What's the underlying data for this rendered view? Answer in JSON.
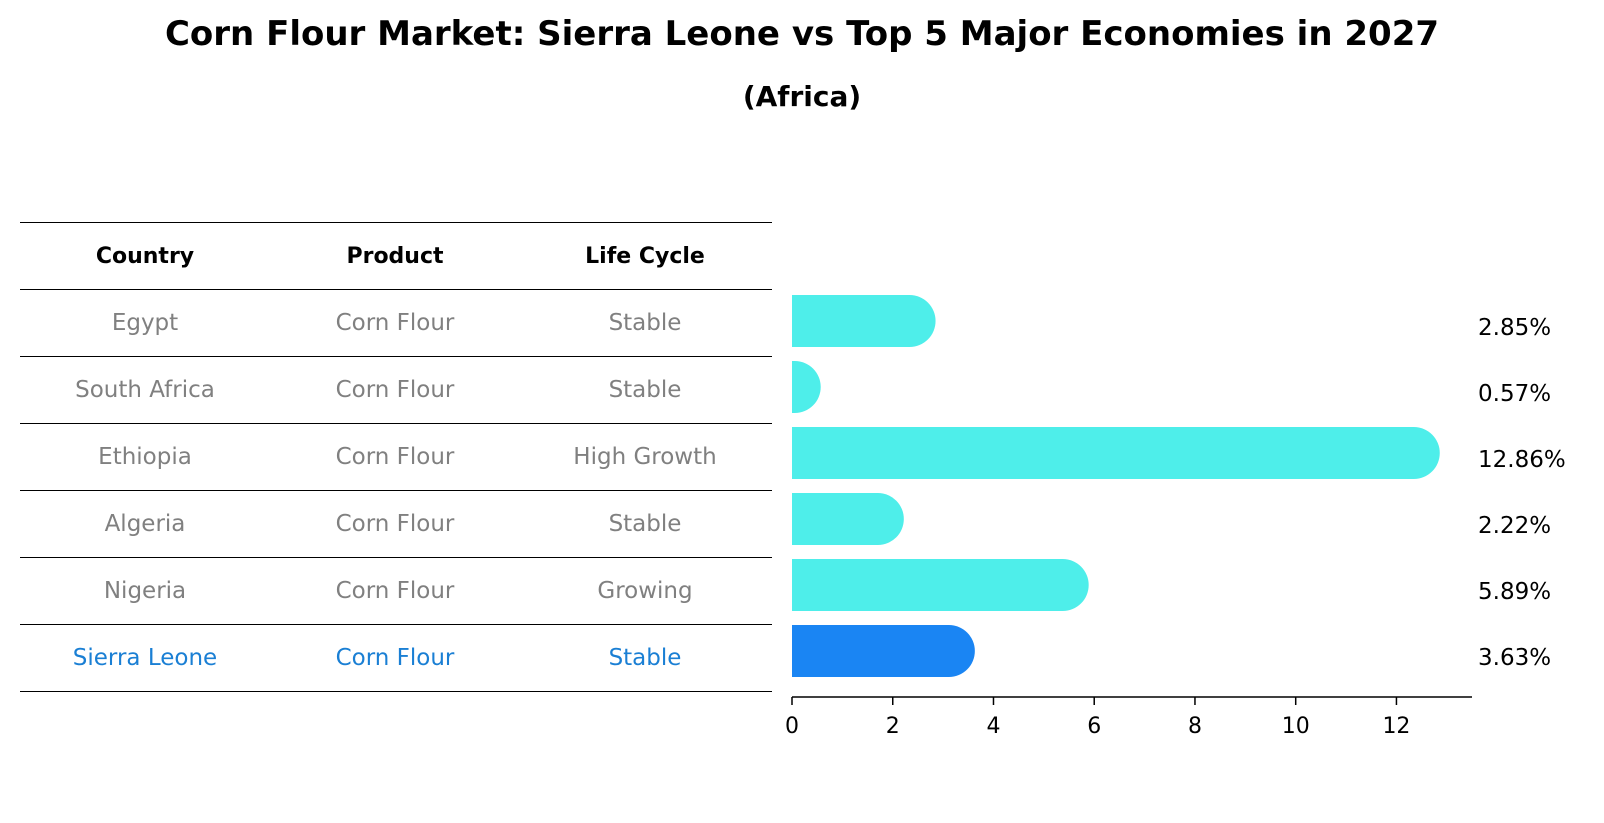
{
  "header": {
    "title": "Corn Flour Market: Sierra Leone vs Top 5 Major Economies in 2027",
    "subtitle": "(Africa)"
  },
  "table": {
    "columns": [
      "Country",
      "Product",
      "Life Cycle"
    ],
    "rows": [
      [
        "Egypt",
        "Corn Flour",
        "Stable"
      ],
      [
        "South Africa",
        "Corn Flour",
        "Stable"
      ],
      [
        "Ethiopia",
        "Corn Flour",
        "High Growth"
      ],
      [
        "Algeria",
        "Corn Flour",
        "Stable"
      ],
      [
        "Nigeria",
        "Corn Flour",
        "Growing"
      ],
      [
        "Sierra Leone",
        "Corn Flour",
        "Stable"
      ]
    ]
  },
  "colors": {
    "bar": "#4eeeea",
    "highlight_bar": "#1a85f3",
    "highlight_text": "#1a7fd4",
    "row_text": "#808080"
  },
  "chart_data": {
    "type": "bar",
    "orientation": "horizontal",
    "categories": [
      "Egypt",
      "South Africa",
      "Ethiopia",
      "Algeria",
      "Nigeria",
      "Sierra Leone"
    ],
    "values": [
      2.85,
      0.57,
      12.86,
      2.22,
      5.89,
      3.63
    ],
    "data_labels": [
      "2.85%",
      "0.57%",
      "12.86%",
      "2.22%",
      "5.89%",
      "3.63%"
    ],
    "highlight": "Sierra Leone",
    "xlim": [
      0,
      13.5
    ],
    "xticks": [
      0,
      2,
      4,
      6,
      8,
      10,
      12
    ],
    "grid": false
  }
}
